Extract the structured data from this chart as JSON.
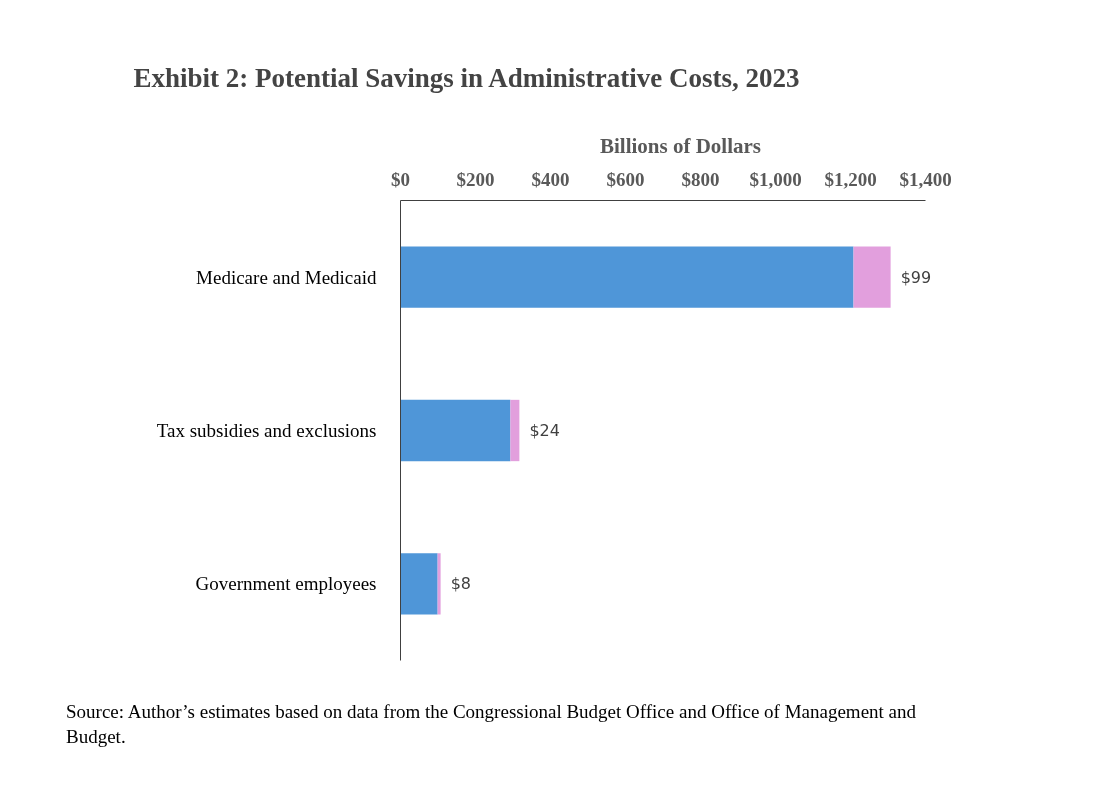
{
  "chart_data": {
    "type": "bar",
    "orientation": "horizontal",
    "stacked": true,
    "title": "Exhibit 2: Potential Savings in Administrative Costs, 2023",
    "xlabel": "Billions of Dollars",
    "categories": [
      "Medicare and Medicaid",
      "Tax subsidies and exclusions",
      "Government employees"
    ],
    "series": [
      {
        "color": "#4f96d8",
        "values": [
          1208,
          293,
          99
        ]
      },
      {
        "color": "#e29fdd",
        "values": [
          99,
          24,
          8
        ],
        "value_labels": [
          "$99",
          "$24",
          "$8"
        ]
      }
    ],
    "xlim": [
      0,
      1400
    ],
    "xticks": [
      {
        "value": 0,
        "label": "$0"
      },
      {
        "value": 200,
        "label": "$200"
      },
      {
        "value": 400,
        "label": "$400"
      },
      {
        "value": 600,
        "label": "$600"
      },
      {
        "value": 800,
        "label": "$800"
      },
      {
        "value": 1000,
        "label": "$1,000"
      },
      {
        "value": 1200,
        "label": "$1,200"
      },
      {
        "value": 1400,
        "label": "$1,400"
      }
    ],
    "grid": false,
    "annotations": [
      "Source: Author’s estimates based on data from the Congressional Budget Office and Office of Management and\nBudget."
    ]
  }
}
